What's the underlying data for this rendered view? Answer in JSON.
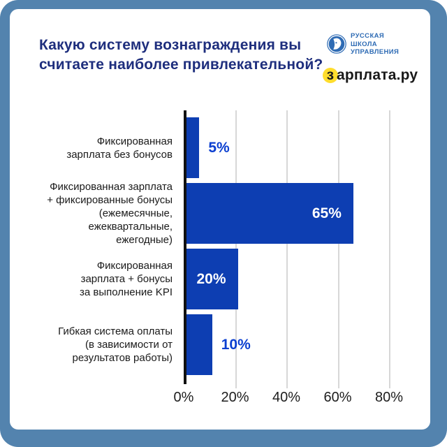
{
  "frame": {
    "color": "#5383ae"
  },
  "header": {
    "title_lines": [
      "Какую систему вознаграждения вы",
      "считаете наиболее привлекательной?"
    ],
    "title_color": "#1e2e7d"
  },
  "logos": {
    "rsu": {
      "icon": "profile-in-circle-icon",
      "lines": "РУССКАЯ\nШКОЛА\nУПРАВЛЕНИЯ",
      "color": "#2e6bb4"
    },
    "zarplata": {
      "first_letter": "з",
      "rest": "арплата.ру",
      "accent_color": "#ffdd2d"
    }
  },
  "chart_data": {
    "type": "bar",
    "orientation": "horizontal",
    "title": "Какую систему вознаграждения вы считаете наиболее привлекательной?",
    "categories": [
      "Фиксированная\nзарплата без бонусов",
      "Фиксированная зарплата\n+ фиксированные бонусы\n(ежемесячные,\nежеквартальные,\nежегодные)",
      "Фиксированная\nзарплата + бонусы\nза выполнение KPI",
      "Гибкая система оплаты\n(в зависимости от\nрезультатов работы)"
    ],
    "values": [
      5,
      65,
      20,
      10
    ],
    "value_labels": [
      "5%",
      "65%",
      "20%",
      "10%"
    ],
    "x_ticks": [
      "0%",
      "20%",
      "40%",
      "60%",
      "80%"
    ],
    "xlim": [
      0,
      86
    ],
    "xlabel": "",
    "ylabel": "",
    "grid": true,
    "bar_color": "#0d3eb2",
    "value_label_inside_threshold": 20
  }
}
